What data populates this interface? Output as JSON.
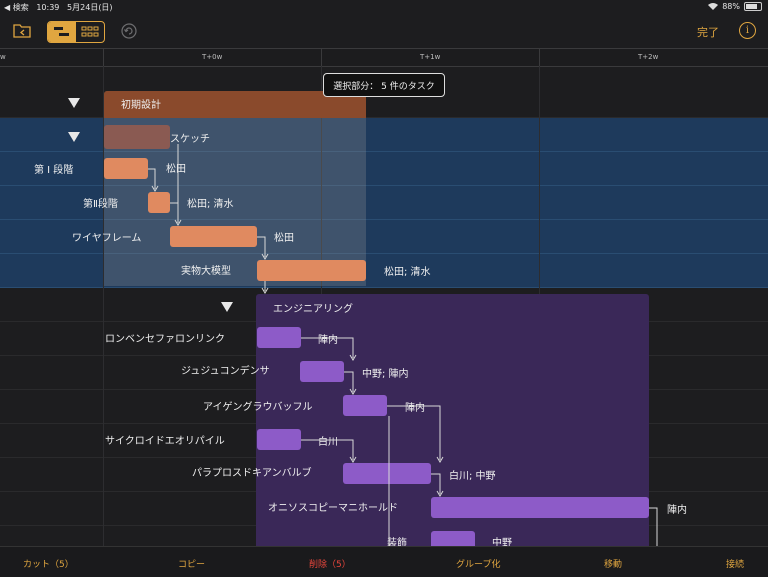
{
  "status": {
    "back_app": "◀ 検索",
    "time": "10:39",
    "date": "5月24日(日)",
    "battery": "88%"
  },
  "toolbar": {
    "done_label": "完了",
    "info_label": "i"
  },
  "timeline": {
    "labels": [
      "w",
      "T+0w",
      "T+1w",
      "T+2w"
    ]
  },
  "tooltip": {
    "text": "選択部分： 5 件のタスク"
  },
  "tasks": {
    "initial_design": {
      "name": "初期設計"
    },
    "sketch": {
      "name": "スケッチ"
    },
    "phase1": {
      "name": "第 Ⅰ 段階",
      "resource": "松田"
    },
    "phase2": {
      "name": "第Ⅱ段階",
      "resource": "松田; 清水"
    },
    "wireframe": {
      "name": "ワイヤフレーム",
      "resource": "松田"
    },
    "mockup": {
      "name": "実物大模型",
      "resource": "松田; 清水"
    },
    "engineering": {
      "name": "エンジニアリング"
    },
    "e1": {
      "name": "ロンベンセファロンリンク",
      "resource": "陣内"
    },
    "e2": {
      "name": "ジュジュコンデンサ",
      "resource": "中野; 陣内"
    },
    "e3": {
      "name": "アイゲングラウバッフル",
      "resource": "陣内"
    },
    "e4": {
      "name": "サイクロイドエオリパイル",
      "resource": "白川"
    },
    "e5": {
      "name": "パラプロスドキアンバルブ",
      "resource": "白川; 中野"
    },
    "e6": {
      "name": "オニソスコピーマニホールド",
      "resource": "陣内"
    },
    "e7": {
      "name": "装飾",
      "resource": "中野"
    }
  },
  "bottombar": {
    "cut": "カット（5）",
    "copy": "コピー",
    "delete": "削除（5）",
    "group": "グループ化",
    "move": "移動",
    "connect": "接続"
  },
  "colors": {
    "accent": "#e0a640",
    "design_bar": "#e08a60",
    "engineering_bar": "#8d5bc8",
    "selection": "#1e3a5c",
    "delete": "#e8463c"
  }
}
